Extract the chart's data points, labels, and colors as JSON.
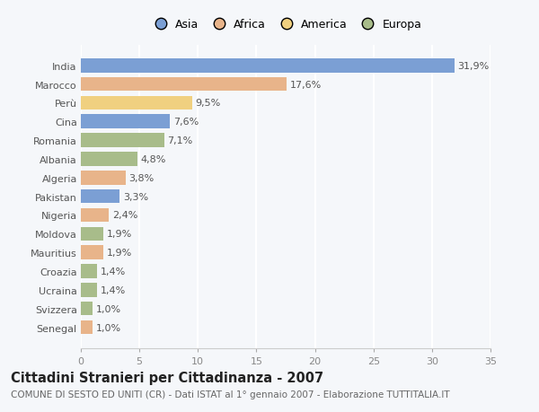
{
  "countries": [
    "India",
    "Marocco",
    "Perù",
    "Cina",
    "Romania",
    "Albania",
    "Algeria",
    "Pakistan",
    "Nigeria",
    "Moldova",
    "Mauritius",
    "Croazia",
    "Ucraina",
    "Svizzera",
    "Senegal"
  ],
  "values": [
    31.9,
    17.6,
    9.5,
    7.6,
    7.1,
    4.8,
    3.8,
    3.3,
    2.4,
    1.9,
    1.9,
    1.4,
    1.4,
    1.0,
    1.0
  ],
  "labels": [
    "31,9%",
    "17,6%",
    "9,5%",
    "7,6%",
    "7,1%",
    "4,8%",
    "3,8%",
    "3,3%",
    "2,4%",
    "1,9%",
    "1,9%",
    "1,4%",
    "1,4%",
    "1,0%",
    "1,0%"
  ],
  "colors": [
    "#7b9fd4",
    "#e8b48a",
    "#f0d080",
    "#7b9fd4",
    "#a8bc8a",
    "#a8bc8a",
    "#e8b48a",
    "#7b9fd4",
    "#e8b48a",
    "#a8bc8a",
    "#e8b48a",
    "#a8bc8a",
    "#a8bc8a",
    "#a8bc8a",
    "#e8b48a"
  ],
  "legend_labels": [
    "Asia",
    "Africa",
    "America",
    "Europa"
  ],
  "legend_colors": [
    "#7b9fd4",
    "#e8b48a",
    "#f0d080",
    "#a8bc8a"
  ],
  "xlim": [
    0,
    35
  ],
  "xticks": [
    0,
    5,
    10,
    15,
    20,
    25,
    30,
    35
  ],
  "title": "Cittadini Stranieri per Cittadinanza - 2007",
  "subtitle": "COMUNE DI SESTO ED UNITI (CR) - Dati ISTAT al 1° gennaio 2007 - Elaborazione TUTTITALIA.IT",
  "background_color": "#f5f7fa",
  "bar_height": 0.75,
  "grid_color": "#ffffff",
  "label_fontsize": 8.0,
  "ytick_fontsize": 8.0,
  "xtick_fontsize": 8.0,
  "title_fontsize": 10.5,
  "subtitle_fontsize": 7.5,
  "legend_fontsize": 9.0
}
